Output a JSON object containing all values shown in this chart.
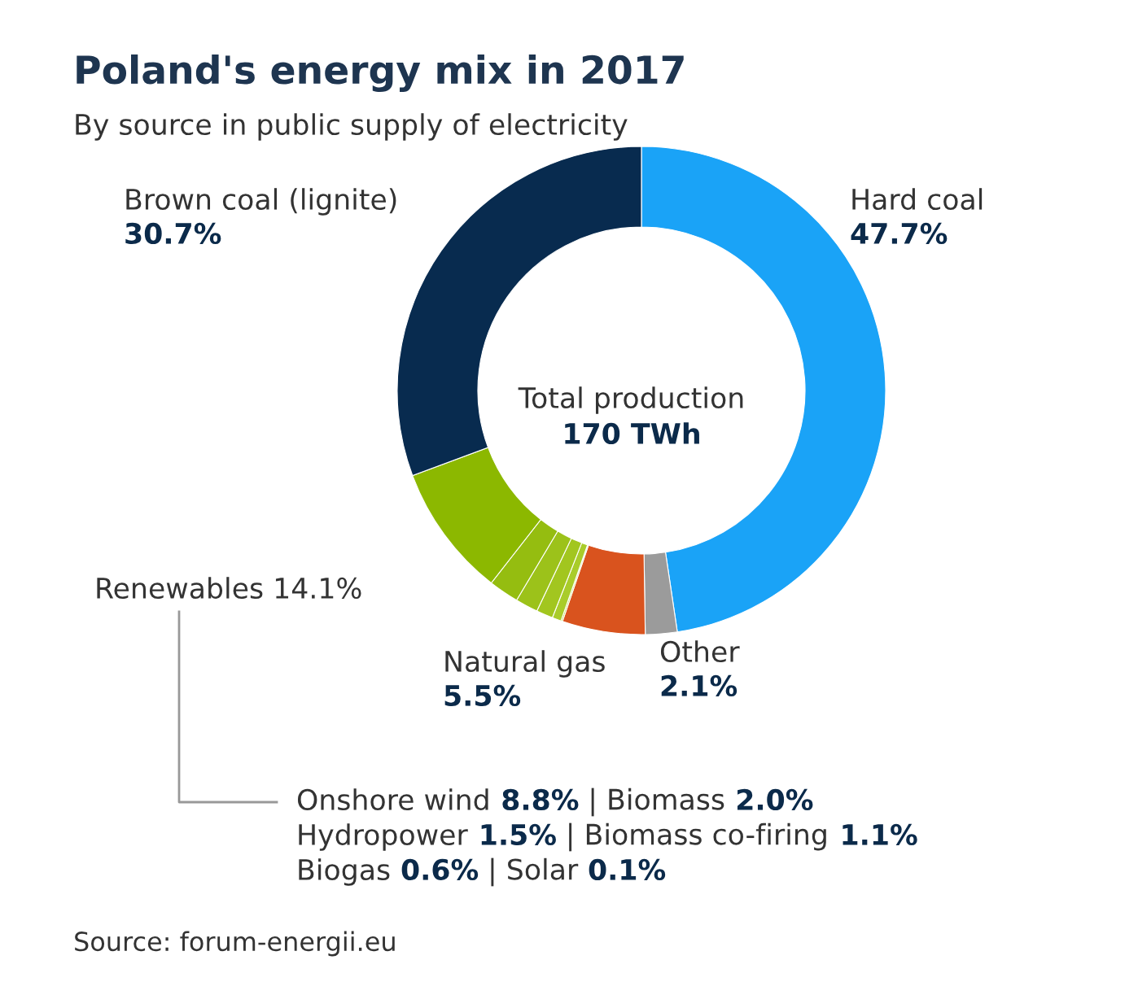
{
  "chart_data": {
    "type": "donut",
    "title": "Poland's energy mix in 2017",
    "subtitle": "By source in public supply of electricity",
    "categories": [
      "Hard coal",
      "Other",
      "Natural gas",
      null,
      null,
      null,
      null,
      null,
      null,
      "Brown coal (lignite)"
    ],
    "values": [
      47.7,
      2.1,
      5.5,
      0.1,
      0.6,
      1.1,
      1.5,
      2.0,
      8.8,
      30.7
    ],
    "value_labels": [
      "47.7%",
      "2.1%",
      "5.5%",
      null,
      null,
      null,
      null,
      null,
      null,
      "30.7%"
    ],
    "colors": [
      "#1aa3f7",
      "#9b9b9b",
      "#d9531e",
      "#b5d334",
      "#a9cc2a",
      "#a2c61f",
      "#9cc21a",
      "#95bd10",
      "#8cb800",
      "#082b4f"
    ],
    "annotations": [
      "Total production",
      "170 TWh",
      "Renewables 14.1%",
      "Source: forum-energii.eu",
      "Onshore wind ",
      "8.8%",
      " | Biomass ",
      "2.0%",
      "Hydropower ",
      "1.5%",
      " | Biomass co-firing ",
      "1.1%",
      "Biogas ",
      "0.6%",
      " | Solar ",
      "0.1%"
    ]
  }
}
